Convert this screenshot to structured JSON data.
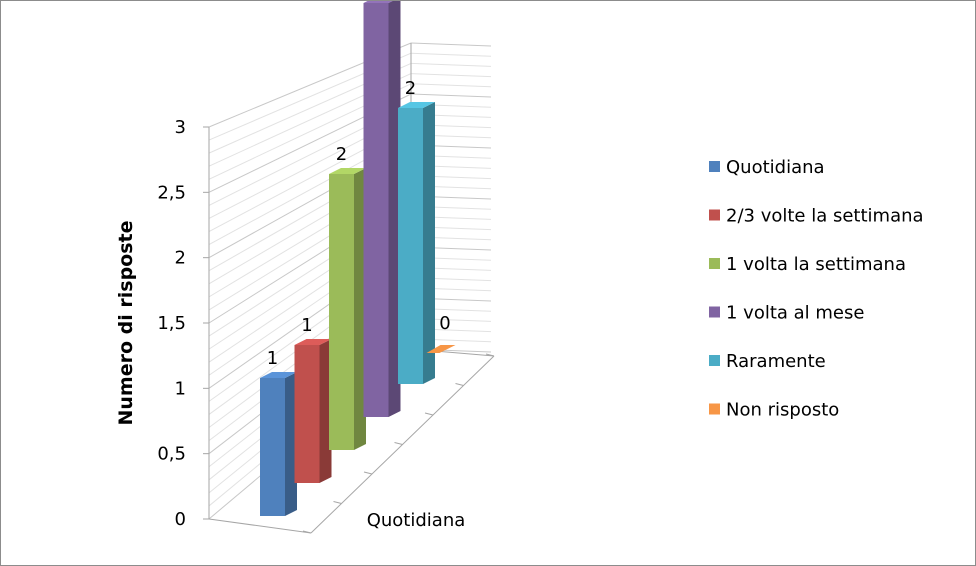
{
  "chart_data": {
    "type": "bar",
    "style": "3d-clustered-column",
    "categories": [
      "Quotidiana"
    ],
    "series": [
      {
        "name": "Quotidiana",
        "values": [
          1
        ],
        "color": "#4f81bd"
      },
      {
        "name": "2/3 volte la settimana",
        "values": [
          1
        ],
        "color": "#c0504d"
      },
      {
        "name": "1 volta la settimana",
        "values": [
          2
        ],
        "color": "#9bbb59"
      },
      {
        "name": "1 volta al mese",
        "values": [
          3
        ],
        "color": "#8064a2"
      },
      {
        "name": "Raramente",
        "values": [
          2
        ],
        "color": "#4bacc6"
      },
      {
        "name": "Non risposto",
        "values": [
          0
        ],
        "color": "#f79646"
      }
    ],
    "ylabel": "Numero di risposte",
    "yticks": [
      "0",
      "0,5",
      "1",
      "1,5",
      "2",
      "2,5",
      "3"
    ],
    "ylim": [
      0,
      3
    ],
    "grid": true,
    "legend_position": "right",
    "data_labels": true
  }
}
